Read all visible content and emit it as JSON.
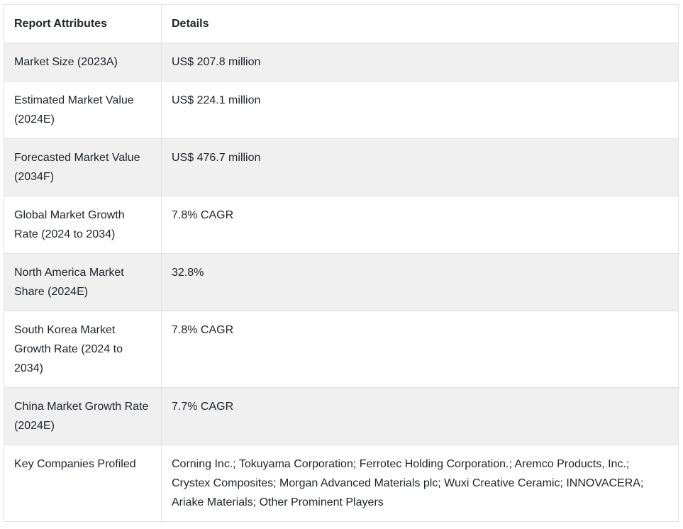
{
  "chart_data": {
    "type": "table",
    "columns": [
      "Report Attributes",
      "Details"
    ],
    "rows": [
      [
        "Market Size (2023A)",
        "US$ 207.8 million"
      ],
      [
        "Estimated Market Value (2024E)",
        "US$ 224.1 million"
      ],
      [
        "Forecasted Market Value (2034F)",
        "US$ 476.7 million"
      ],
      [
        "Global Market Growth Rate (2024 to 2034)",
        "7.8% CAGR"
      ],
      [
        "North America Market Share (2024E)",
        "32.8%"
      ],
      [
        "South Korea Market Growth Rate (2024 to 2034)",
        "7.8% CAGR"
      ],
      [
        "China Market Growth Rate (2024E)",
        "7.7% CAGR"
      ],
      [
        "Key Companies Profiled",
        "Corning Inc.; Tokuyama Corporation; Ferrotec Holding Corporation.; Aremco Products, Inc.; Crystex Composites; Morgan Advanced Materials plc; Wuxi Creative Ceramic; INNOVACERA; Ariake Materials; Other Prominent Players"
      ]
    ]
  },
  "colors": {
    "stripe_background": "#f0f0f1",
    "border": "#e2e2e5",
    "text": "#212529",
    "background": "#ffffff"
  }
}
